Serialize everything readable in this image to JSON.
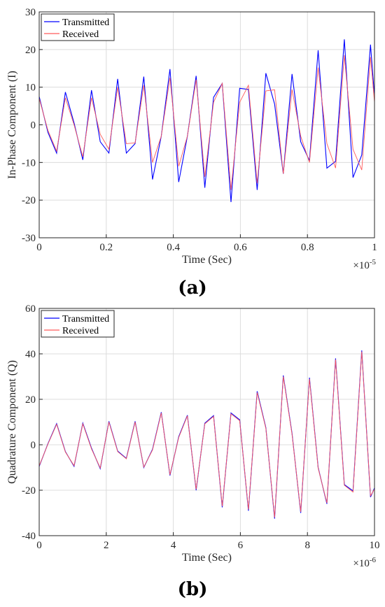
{
  "colors": {
    "transmitted": "#0000ff",
    "received": "#ff5a5a",
    "grid": "#dcdcdc"
  },
  "chart_data": [
    {
      "type": "line",
      "panel_label": "(a)",
      "xlabel": "Time (Sec)",
      "ylabel": "In-Phase Component (I)",
      "x_multiplier": "×10",
      "x_multiplier_exp": "-5",
      "xlim": [
        0,
        1
      ],
      "ylim": [
        -30,
        30
      ],
      "xticks": [
        0,
        0.2,
        0.4,
        0.6,
        0.8,
        1
      ],
      "xtick_labels": [
        "0",
        "0.2",
        "0.4",
        "0.6",
        "0.8",
        "1"
      ],
      "yticks": [
        -30,
        -20,
        -10,
        0,
        10,
        20,
        30
      ],
      "ytick_labels": [
        "-30",
        "-20",
        "-10",
        "0",
        "10",
        "20",
        "30"
      ],
      "grid": true,
      "legend_position": "top-left",
      "x": [
        0,
        0.026,
        0.052,
        0.078,
        0.104,
        0.13,
        0.156,
        0.182,
        0.208,
        0.234,
        0.26,
        0.286,
        0.312,
        0.338,
        0.364,
        0.39,
        0.416,
        0.442,
        0.468,
        0.494,
        0.52,
        0.546,
        0.572,
        0.598,
        0.624,
        0.65,
        0.676,
        0.702,
        0.728,
        0.754,
        0.78,
        0.806,
        0.832,
        0.858,
        0.884,
        0.91,
        0.936,
        0.962,
        0.988,
        1.0
      ],
      "series": [
        {
          "name": "Transmitted",
          "values": [
            7.5,
            -2,
            -7.5,
            8.7,
            0.5,
            -9.3,
            9.2,
            -4.5,
            -7.5,
            12.2,
            -7.5,
            -5,
            12.8,
            -14.5,
            -3,
            14.8,
            -15.2,
            -3,
            13,
            -16.7,
            7.3,
            11,
            -20.5,
            9.7,
            9.4,
            -17.3,
            13.7,
            5.5,
            -13,
            13.5,
            -4.5,
            -9.5,
            19.8,
            -11.5,
            -9.7,
            22.7,
            -14,
            -8,
            21.3,
            7.5
          ]
        },
        {
          "name": "Received",
          "values": [
            7,
            -1.5,
            -7,
            7.2,
            0,
            -8.5,
            7.2,
            -2.5,
            -6.5,
            10,
            -5,
            -4.8,
            10.5,
            -10,
            -3,
            12.5,
            -11,
            -3,
            12,
            -13.8,
            6,
            11,
            -17.3,
            6,
            10.5,
            -15.5,
            9,
            9.3,
            -13,
            9.4,
            -3,
            -10,
            15.2,
            -5,
            -11.5,
            18.5,
            -6.5,
            -12,
            18,
            6
          ]
        }
      ]
    },
    {
      "type": "line",
      "panel_label": "(b)",
      "xlabel": "Time (Sec)",
      "ylabel": "Quadrature Component (Q)",
      "x_multiplier": "×10",
      "x_multiplier_exp": "-6",
      "xlim": [
        0,
        10
      ],
      "ylim": [
        -40,
        60
      ],
      "xticks": [
        0,
        2,
        4,
        6,
        8,
        10
      ],
      "xtick_labels": [
        "0",
        "2",
        "4",
        "6",
        "8",
        "10"
      ],
      "yticks": [
        -40,
        -20,
        0,
        20,
        40,
        60
      ],
      "ytick_labels": [
        "-40",
        "-20",
        "0",
        "20",
        "40",
        "60"
      ],
      "grid": true,
      "legend_position": "top-left",
      "x": [
        0,
        0.26,
        0.52,
        0.78,
        1.04,
        1.3,
        1.56,
        1.82,
        2.08,
        2.34,
        2.6,
        2.86,
        3.12,
        3.38,
        3.64,
        3.9,
        4.16,
        4.42,
        4.68,
        4.94,
        5.2,
        5.46,
        5.72,
        5.98,
        6.24,
        6.5,
        6.76,
        7.02,
        7.28,
        7.54,
        7.8,
        8.06,
        8.32,
        8.58,
        8.84,
        9.1,
        9.36,
        9.62,
        9.88,
        10.0
      ],
      "series": [
        {
          "name": "Transmitted",
          "values": [
            -9.5,
            0.5,
            9.3,
            -3,
            -9.5,
            9.5,
            -1.5,
            -10.5,
            10.3,
            -2.8,
            -6,
            10.3,
            -10,
            -2,
            14.3,
            -13.5,
            3.5,
            13,
            -20,
            9.5,
            12.8,
            -27.5,
            14,
            11,
            -29,
            23.5,
            7.5,
            -32.5,
            30.5,
            5,
            -30,
            29.5,
            -10,
            -26,
            38,
            -17.5,
            -20.3,
            41.5,
            -23,
            -19
          ]
        },
        {
          "name": "Received",
          "values": [
            -9.3,
            0.3,
            9,
            -3.2,
            -9.2,
            9.2,
            -1.8,
            -10.2,
            10,
            -3,
            -6.2,
            10,
            -9.8,
            -2.3,
            14,
            -13.2,
            3.2,
            12.7,
            -19.6,
            9.2,
            12.5,
            -27,
            13.6,
            10.6,
            -28.5,
            23,
            7.2,
            -32,
            30,
            4.6,
            -29.5,
            29,
            -10.3,
            -25.6,
            37.5,
            -17.8,
            -20.8,
            41,
            -22.5,
            -19.5
          ]
        }
      ]
    }
  ]
}
